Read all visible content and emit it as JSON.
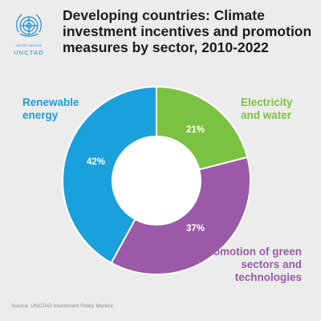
{
  "header": {
    "title": "Developing countries: Climate investment incentives and promotion measures by sector, 2010-2022",
    "org_small": "UNITED NATIONS",
    "org_name": "UNCTAD"
  },
  "colors": {
    "renewable": "#1aa0dc",
    "electricity": "#7cc242",
    "promotion": "#9a5aa8",
    "background": "#ececec"
  },
  "chart_data": {
    "type": "pie",
    "donut": true,
    "title": "Developing countries: Climate investment incentives and promotion measures by sector, 2010-2022",
    "slices": [
      {
        "label": "Electricity and water",
        "value": 21,
        "display": "21%"
      },
      {
        "label": "Promotion of green sectors and technologies",
        "value": 37,
        "display": "37%"
      },
      {
        "label": "Renewable energy",
        "value": 42,
        "display": "42%"
      }
    ],
    "start": "12 o'clock",
    "direction": "clockwise"
  },
  "footer": {
    "source": "Source: UNCTAD Investment Policy Monitor."
  }
}
